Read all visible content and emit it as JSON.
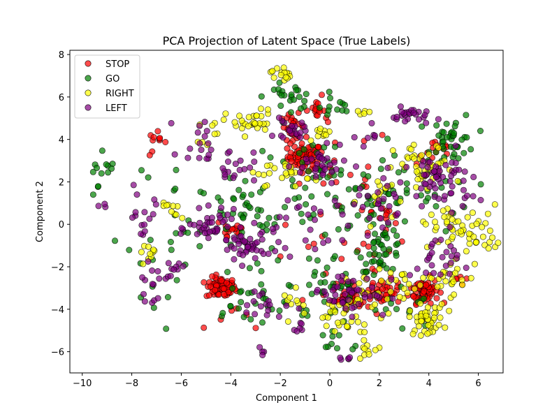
{
  "chart_data": {
    "type": "scatter",
    "title": "PCA Projection of Latent Space (True Labels)",
    "xlabel": "Component 1",
    "ylabel": "Component 2",
    "xlim": [
      -10.5,
      7.0
    ],
    "ylim": [
      -7.0,
      8.2
    ],
    "x_ticks": [
      -10,
      -8,
      -6,
      -4,
      -2,
      0,
      2,
      4,
      6
    ],
    "y_ticks": [
      -6,
      -4,
      -2,
      0,
      2,
      4,
      6,
      8
    ],
    "legend_placement": "upper-left",
    "grid": false,
    "marker": "circle",
    "marker_alpha": 0.7,
    "edge_color": "#000000",
    "series": [
      {
        "name": "STOP",
        "color": "#ff0000",
        "clusters": [
          {
            "x": -1.0,
            "y": 3.2,
            "sx": 0.35,
            "sy": 0.3,
            "n": 60
          },
          {
            "x": -4.4,
            "y": -3.0,
            "sx": 0.3,
            "sy": 0.25,
            "n": 70
          },
          {
            "x": 3.8,
            "y": -3.1,
            "sx": 0.3,
            "sy": 0.3,
            "n": 70
          },
          {
            "x": 0.9,
            "y": -3.4,
            "sx": 0.4,
            "sy": 0.3,
            "n": 45
          },
          {
            "x": 2.2,
            "y": -3.2,
            "sx": 0.3,
            "sy": 0.3,
            "n": 30
          },
          {
            "x": -1.5,
            "y": 4.6,
            "sx": 0.25,
            "sy": 0.3,
            "n": 25
          },
          {
            "x": -0.6,
            "y": 5.4,
            "sx": 0.2,
            "sy": 0.15,
            "n": 15
          },
          {
            "x": -7.0,
            "y": 3.8,
            "sx": 0.2,
            "sy": 0.3,
            "n": 10
          },
          {
            "x": 4.3,
            "y": 3.4,
            "sx": 0.4,
            "sy": 0.3,
            "n": 15
          },
          {
            "x": -4.0,
            "y": -0.2,
            "sx": 0.35,
            "sy": 0.35,
            "n": 15
          },
          {
            "x": 2.3,
            "y": 0.6,
            "sx": 0.3,
            "sy": 0.3,
            "n": 10
          },
          {
            "x": 0.2,
            "y": 2.5,
            "sx": 1.2,
            "sy": 1.1,
            "n": 25
          },
          {
            "x": 0.4,
            "y": -1.8,
            "sx": 1.6,
            "sy": 1.2,
            "n": 25
          },
          {
            "x": -3.5,
            "y": -4.6,
            "sx": 0.6,
            "sy": 0.3,
            "n": 6
          },
          {
            "x": 5.3,
            "y": -2.5,
            "sx": 0.2,
            "sy": 0.2,
            "n": 5
          }
        ]
      },
      {
        "name": "GO",
        "color": "#008000",
        "clusters": [
          {
            "x": -9.3,
            "y": 2.0,
            "sx": 0.35,
            "sy": 0.6,
            "n": 12
          },
          {
            "x": 5.0,
            "y": 4.0,
            "sx": 0.45,
            "sy": 0.6,
            "n": 40
          },
          {
            "x": 2.1,
            "y": -1.2,
            "sx": 0.45,
            "sy": 0.5,
            "n": 40
          },
          {
            "x": -1.6,
            "y": 6.0,
            "sx": 0.5,
            "sy": 0.3,
            "n": 25
          },
          {
            "x": 0.2,
            "y": 5.5,
            "sx": 0.35,
            "sy": 0.3,
            "n": 10
          },
          {
            "x": -0.5,
            "y": 2.0,
            "sx": 1.4,
            "sy": 1.0,
            "n": 45
          },
          {
            "x": -3.2,
            "y": 0.5,
            "sx": 1.2,
            "sy": 0.9,
            "n": 40
          },
          {
            "x": 0.3,
            "y": -3.0,
            "sx": 1.0,
            "sy": 0.8,
            "n": 40
          },
          {
            "x": 1.5,
            "y": 1.0,
            "sx": 1.0,
            "sy": 0.9,
            "n": 30
          },
          {
            "x": -6.2,
            "y": 1.0,
            "sx": 1.0,
            "sy": 1.5,
            "n": 18
          },
          {
            "x": -3.5,
            "y": -3.8,
            "sx": 0.8,
            "sy": 0.6,
            "n": 20
          },
          {
            "x": 0.0,
            "y": -5.5,
            "sx": 0.9,
            "sy": 0.4,
            "n": 10
          },
          {
            "x": -7.2,
            "y": -3.0,
            "sx": 0.5,
            "sy": 1.0,
            "n": 8
          },
          {
            "x": 3.5,
            "y": 1.5,
            "sx": 1.1,
            "sy": 1.0,
            "n": 20
          },
          {
            "x": -2.5,
            "y": -2.5,
            "sx": 0.9,
            "sy": 0.8,
            "n": 15
          },
          {
            "x": 3.0,
            "y": -4.0,
            "sx": 0.6,
            "sy": 0.6,
            "n": 12
          }
        ]
      },
      {
        "name": "RIGHT",
        "color": "#ffff00",
        "clusters": [
          {
            "x": -2.0,
            "y": 7.1,
            "sx": 0.2,
            "sy": 0.2,
            "n": 15
          },
          {
            "x": -3.2,
            "y": 4.8,
            "sx": 0.5,
            "sy": 0.3,
            "n": 30
          },
          {
            "x": 3.8,
            "y": 2.6,
            "sx": 0.6,
            "sy": 0.6,
            "n": 40
          },
          {
            "x": 5.5,
            "y": -0.3,
            "sx": 0.7,
            "sy": 0.6,
            "n": 40
          },
          {
            "x": 3.9,
            "y": -4.5,
            "sx": 0.35,
            "sy": 0.35,
            "n": 45
          },
          {
            "x": 4.8,
            "y": -2.5,
            "sx": 0.6,
            "sy": 0.4,
            "n": 25
          },
          {
            "x": 2.8,
            "y": -3.0,
            "sx": 0.5,
            "sy": 0.4,
            "n": 15
          },
          {
            "x": 1.5,
            "y": -3.5,
            "sx": 0.5,
            "sy": 0.6,
            "n": 25
          },
          {
            "x": -7.2,
            "y": -1.3,
            "sx": 0.25,
            "sy": 0.2,
            "n": 10
          },
          {
            "x": -6.3,
            "y": 0.6,
            "sx": 0.3,
            "sy": 0.2,
            "n": 10
          },
          {
            "x": -0.2,
            "y": 4.3,
            "sx": 0.2,
            "sy": 0.2,
            "n": 10
          },
          {
            "x": -1.6,
            "y": 2.4,
            "sx": 0.4,
            "sy": 0.3,
            "n": 15
          },
          {
            "x": -4.9,
            "y": 4.4,
            "sx": 0.2,
            "sy": 0.3,
            "n": 8
          },
          {
            "x": 1.5,
            "y": -5.9,
            "sx": 0.3,
            "sy": 0.2,
            "n": 10
          },
          {
            "x": 0.2,
            "y": -4.3,
            "sx": 0.4,
            "sy": 0.3,
            "n": 15
          },
          {
            "x": -1.3,
            "y": -3.7,
            "sx": 0.3,
            "sy": 0.3,
            "n": 10
          },
          {
            "x": 1.3,
            "y": 5.3,
            "sx": 0.15,
            "sy": 0.1,
            "n": 5
          },
          {
            "x": 2.2,
            "y": 1.2,
            "sx": 0.5,
            "sy": 0.6,
            "n": 15
          },
          {
            "x": 6.0,
            "y": -0.7,
            "sx": 0.3,
            "sy": 0.3,
            "n": 8
          },
          {
            "x": -2.6,
            "y": 2.5,
            "sx": 0.3,
            "sy": 0.3,
            "n": 8
          },
          {
            "x": 4.3,
            "y": 0.3,
            "sx": 0.4,
            "sy": 0.3,
            "n": 10
          },
          {
            "x": 0.8,
            "y": -4.8,
            "sx": 0.3,
            "sy": 0.2,
            "n": 8
          }
        ]
      },
      {
        "name": "LEFT",
        "color": "#800080",
        "clusters": [
          {
            "x": 3.3,
            "y": 5.1,
            "sx": 0.4,
            "sy": 0.2,
            "n": 25
          },
          {
            "x": 4.4,
            "y": 2.4,
            "sx": 0.6,
            "sy": 0.5,
            "n": 40
          },
          {
            "x": -4.7,
            "y": -0.2,
            "sx": 0.5,
            "sy": 0.4,
            "n": 40
          },
          {
            "x": -3.4,
            "y": -1.1,
            "sx": 0.4,
            "sy": 0.4,
            "n": 35
          },
          {
            "x": -0.3,
            "y": 2.8,
            "sx": 0.6,
            "sy": 0.4,
            "n": 30
          },
          {
            "x": -1.6,
            "y": 4.4,
            "sx": 0.3,
            "sy": 0.25,
            "n": 20
          },
          {
            "x": -7.2,
            "y": -2.8,
            "sx": 0.3,
            "sy": 0.4,
            "n": 15
          },
          {
            "x": -7.5,
            "y": 0.5,
            "sx": 0.35,
            "sy": 0.8,
            "n": 15
          },
          {
            "x": -5.2,
            "y": 4.0,
            "sx": 0.4,
            "sy": 0.6,
            "n": 15
          },
          {
            "x": -4.0,
            "y": 2.8,
            "sx": 0.5,
            "sy": 0.4,
            "n": 20
          },
          {
            "x": 0.8,
            "y": -3.2,
            "sx": 0.8,
            "sy": 0.5,
            "n": 45
          },
          {
            "x": 1.5,
            "y": 0.8,
            "sx": 1.2,
            "sy": 0.9,
            "n": 40
          },
          {
            "x": 4.2,
            "y": -1.8,
            "sx": 0.5,
            "sy": 0.6,
            "n": 25
          },
          {
            "x": -1.8,
            "y": -0.5,
            "sx": 1.0,
            "sy": 0.8,
            "n": 25
          },
          {
            "x": -2.8,
            "y": -3.8,
            "sx": 0.5,
            "sy": 0.4,
            "n": 15
          },
          {
            "x": -1.3,
            "y": -4.9,
            "sx": 0.2,
            "sy": 0.15,
            "n": 6
          },
          {
            "x": 0.7,
            "y": -6.3,
            "sx": 0.15,
            "sy": 0.05,
            "n": 5
          },
          {
            "x": -6.2,
            "y": -2.0,
            "sx": 0.4,
            "sy": 0.2,
            "n": 8
          },
          {
            "x": -2.7,
            "y": -6.0,
            "sx": 0.15,
            "sy": 0.1,
            "n": 4
          },
          {
            "x": 5.2,
            "y": 1.4,
            "sx": 0.4,
            "sy": 0.6,
            "n": 12
          },
          {
            "x": -9.2,
            "y": 1.0,
            "sx": 0.1,
            "sy": 0.1,
            "n": 3
          },
          {
            "x": 1.4,
            "y": 4.2,
            "sx": 0.3,
            "sy": 0.3,
            "n": 8
          }
        ]
      }
    ]
  }
}
